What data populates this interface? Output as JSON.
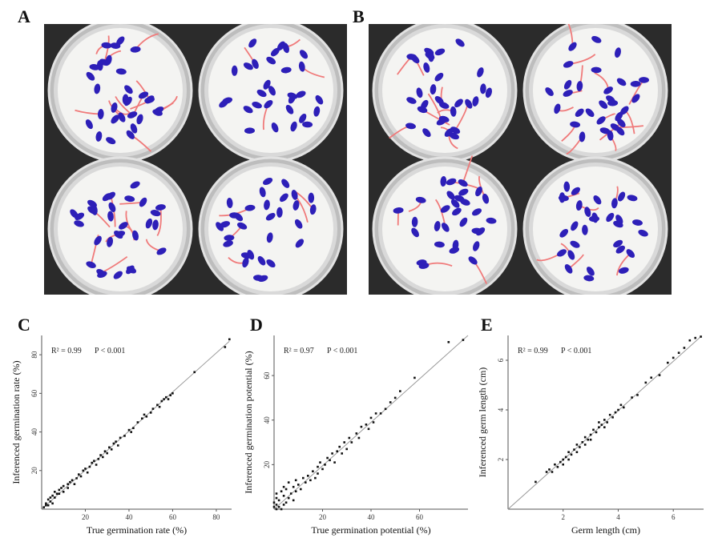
{
  "panels": {
    "a": {
      "letter": "A"
    },
    "b": {
      "letter": "B"
    },
    "c": {
      "letter": "C"
    },
    "d": {
      "letter": "D"
    },
    "e": {
      "letter": "E"
    }
  },
  "colors": {
    "background": "#ffffff",
    "photo_background": "#2b2b2b",
    "filter_paper": "#f4f4f2",
    "seed": "#2d1fb8",
    "sprout": "#f07a7a",
    "point": "#111111",
    "fit_line": "#9a9a9a",
    "axis": "#555555"
  },
  "photos": {
    "a": {
      "dishes": [
        {
          "seeds": 30,
          "sprouts": 14
        },
        {
          "seeds": 30,
          "sprouts": 4
        },
        {
          "seeds": 30,
          "sprouts": 10
        },
        {
          "seeds": 30,
          "sprouts": 5
        }
      ]
    },
    "b": {
      "dishes": [
        {
          "seeds": 30,
          "sprouts": 10
        },
        {
          "seeds": 30,
          "sprouts": 14
        },
        {
          "seeds": 30,
          "sprouts": 8
        },
        {
          "seeds": 30,
          "sprouts": 7
        }
      ]
    }
  },
  "chart_data": [
    {
      "id": "C",
      "type": "scatter",
      "xlabel": "True germination rate (%)",
      "ylabel": "Inferenced germination rate (%)",
      "xlim": [
        0,
        87
      ],
      "ylim": [
        0,
        90
      ],
      "xticks": [
        20,
        40,
        60,
        80
      ],
      "yticks": [
        20,
        40,
        60,
        80
      ],
      "r2_text": "R² = 0.99",
      "p_text": "P < 0.001",
      "fit_line": [
        [
          0,
          0
        ],
        [
          86,
          87
        ]
      ],
      "points": [
        [
          1,
          1
        ],
        [
          2,
          2
        ],
        [
          2,
          3
        ],
        [
          3,
          2
        ],
        [
          3,
          5
        ],
        [
          4,
          4
        ],
        [
          4,
          6
        ],
        [
          5,
          7
        ],
        [
          5,
          3
        ],
        [
          6,
          6
        ],
        [
          6,
          9
        ],
        [
          7,
          8
        ],
        [
          8,
          8
        ],
        [
          8,
          10
        ],
        [
          9,
          11
        ],
        [
          10,
          9
        ],
        [
          10,
          12
        ],
        [
          12,
          11
        ],
        [
          12,
          13
        ],
        [
          13,
          14
        ],
        [
          14,
          15
        ],
        [
          15,
          13
        ],
        [
          16,
          16
        ],
        [
          17,
          18
        ],
        [
          18,
          17
        ],
        [
          19,
          20
        ],
        [
          20,
          21
        ],
        [
          21,
          19
        ],
        [
          22,
          22
        ],
        [
          23,
          24
        ],
        [
          24,
          25
        ],
        [
          25,
          23
        ],
        [
          26,
          26
        ],
        [
          27,
          28
        ],
        [
          28,
          27
        ],
        [
          29,
          30
        ],
        [
          30,
          29
        ],
        [
          31,
          32
        ],
        [
          32,
          31
        ],
        [
          33,
          34
        ],
        [
          34,
          35
        ],
        [
          35,
          33
        ],
        [
          36,
          37
        ],
        [
          38,
          38
        ],
        [
          40,
          41
        ],
        [
          41,
          40
        ],
        [
          42,
          42
        ],
        [
          44,
          45
        ],
        [
          46,
          47
        ],
        [
          47,
          49
        ],
        [
          48,
          48
        ],
        [
          50,
          50
        ],
        [
          51,
          52
        ],
        [
          53,
          54
        ],
        [
          54,
          53
        ],
        [
          55,
          56
        ],
        [
          56,
          57
        ],
        [
          57,
          58
        ],
        [
          58,
          57
        ],
        [
          59,
          59
        ],
        [
          60,
          60
        ],
        [
          70,
          71
        ],
        [
          84,
          84
        ],
        [
          86,
          88
        ]
      ]
    },
    {
      "id": "D",
      "type": "scatter",
      "xlabel": "True germination potential (%)",
      "ylabel": "Inferenced germination potential (%)",
      "xlim": [
        0,
        80
      ],
      "ylim": [
        0,
        78
      ],
      "xticks": [
        20,
        40,
        60
      ],
      "yticks": [
        20,
        40,
        60
      ],
      "r2_text": "R² = 0.97",
      "p_text": "P < 0.001",
      "fit_line": [
        [
          0,
          0
        ],
        [
          80,
          78
        ]
      ],
      "points": [
        [
          0,
          1
        ],
        [
          0,
          3
        ],
        [
          1,
          0
        ],
        [
          1,
          2
        ],
        [
          1,
          5
        ],
        [
          1,
          7
        ],
        [
          2,
          1
        ],
        [
          2,
          4
        ],
        [
          3,
          0
        ],
        [
          3,
          8
        ],
        [
          4,
          2
        ],
        [
          4,
          6
        ],
        [
          4,
          10
        ],
        [
          5,
          3
        ],
        [
          5,
          9
        ],
        [
          6,
          5
        ],
        [
          6,
          12
        ],
        [
          7,
          7
        ],
        [
          8,
          4
        ],
        [
          8,
          10
        ],
        [
          9,
          8
        ],
        [
          9,
          13
        ],
        [
          10,
          11
        ],
        [
          11,
          9
        ],
        [
          12,
          14
        ],
        [
          13,
          12
        ],
        [
          14,
          15
        ],
        [
          15,
          13
        ],
        [
          16,
          17
        ],
        [
          17,
          14
        ],
        [
          18,
          19
        ],
        [
          18,
          16
        ],
        [
          19,
          21
        ],
        [
          20,
          18
        ],
        [
          21,
          20
        ],
        [
          22,
          23
        ],
        [
          23,
          22
        ],
        [
          24,
          25
        ],
        [
          25,
          21
        ],
        [
          26,
          26
        ],
        [
          27,
          28
        ],
        [
          28,
          25
        ],
        [
          29,
          30
        ],
        [
          30,
          27
        ],
        [
          31,
          32
        ],
        [
          32,
          30
        ],
        [
          34,
          34
        ],
        [
          35,
          32
        ],
        [
          36,
          37
        ],
        [
          38,
          38
        ],
        [
          39,
          36
        ],
        [
          40,
          41
        ],
        [
          41,
          39
        ],
        [
          42,
          43
        ],
        [
          44,
          43
        ],
        [
          46,
          45
        ],
        [
          48,
          48
        ],
        [
          50,
          50
        ],
        [
          52,
          53
        ],
        [
          58,
          59
        ],
        [
          72,
          75
        ],
        [
          78,
          76
        ]
      ]
    },
    {
      "id": "E",
      "type": "scatter",
      "xlabel": "Germ length (cm)",
      "ylabel": "Inferenced germ length (cm)",
      "xlim": [
        0,
        7.1
      ],
      "ylim": [
        0,
        7.0
      ],
      "xticks": [
        2,
        4,
        6
      ],
      "yticks": [
        2,
        4,
        6
      ],
      "r2_text": "R² = 0.99",
      "p_text": "P < 0.001",
      "fit_line": [
        [
          0,
          0
        ],
        [
          7.0,
          6.95
        ]
      ],
      "points": [
        [
          1.0,
          1.1
        ],
        [
          1.4,
          1.5
        ],
        [
          1.5,
          1.6
        ],
        [
          1.6,
          1.5
        ],
        [
          1.7,
          1.8
        ],
        [
          1.8,
          1.7
        ],
        [
          1.9,
          1.9
        ],
        [
          2.0,
          2.0
        ],
        [
          2.0,
          1.8
        ],
        [
          2.1,
          2.1
        ],
        [
          2.2,
          2.0
        ],
        [
          2.2,
          2.3
        ],
        [
          2.3,
          2.2
        ],
        [
          2.4,
          2.4
        ],
        [
          2.5,
          2.3
        ],
        [
          2.5,
          2.6
        ],
        [
          2.6,
          2.5
        ],
        [
          2.7,
          2.7
        ],
        [
          2.8,
          2.6
        ],
        [
          2.8,
          2.9
        ],
        [
          2.9,
          2.8
        ],
        [
          3.0,
          3.0
        ],
        [
          3.0,
          2.8
        ],
        [
          3.1,
          3.2
        ],
        [
          3.2,
          3.1
        ],
        [
          3.3,
          3.3
        ],
        [
          3.3,
          3.5
        ],
        [
          3.4,
          3.4
        ],
        [
          3.5,
          3.6
        ],
        [
          3.5,
          3.3
        ],
        [
          3.6,
          3.5
        ],
        [
          3.7,
          3.8
        ],
        [
          3.8,
          3.7
        ],
        [
          3.9,
          3.9
        ],
        [
          4.0,
          4.0
        ],
        [
          4.1,
          4.2
        ],
        [
          4.2,
          4.1
        ],
        [
          4.5,
          4.5
        ],
        [
          4.7,
          4.6
        ],
        [
          5.0,
          5.1
        ],
        [
          5.2,
          5.3
        ],
        [
          5.5,
          5.4
        ],
        [
          5.8,
          5.9
        ],
        [
          6.0,
          6.1
        ],
        [
          6.2,
          6.3
        ],
        [
          6.4,
          6.5
        ],
        [
          6.6,
          6.8
        ],
        [
          6.8,
          6.9
        ],
        [
          7.0,
          6.95
        ]
      ]
    }
  ]
}
